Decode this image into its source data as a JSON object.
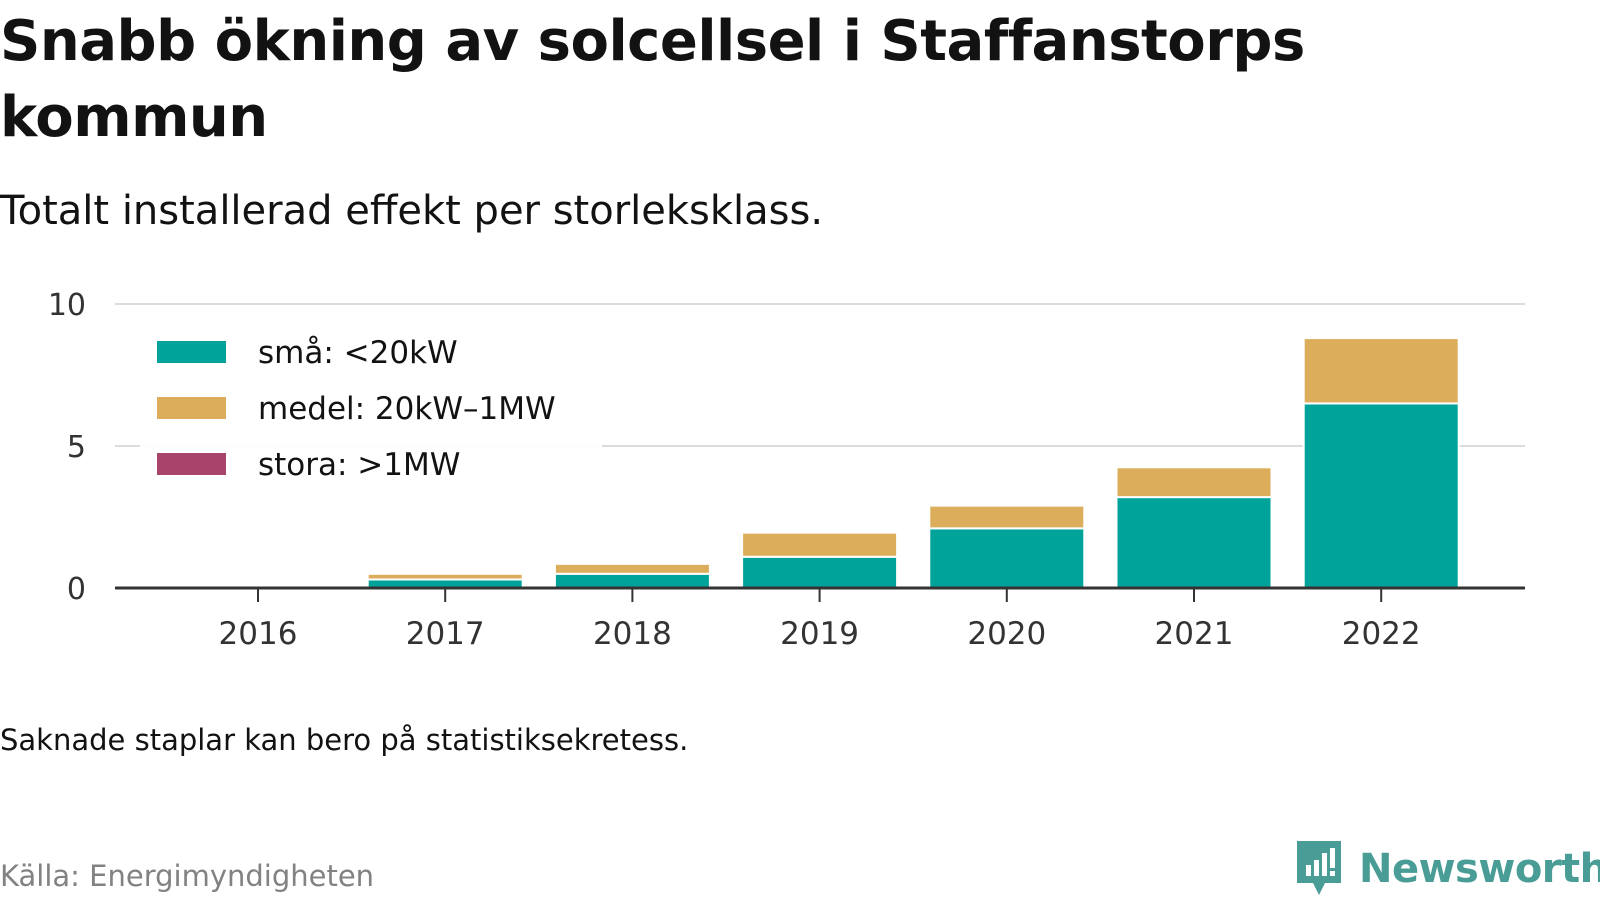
{
  "header": {
    "title": "Snabb ökning av solcellsel i Staffanstorps kommun",
    "subtitle": "Totalt installerad effekt per storleksklass."
  },
  "footer": {
    "note": "Saknade staplar kan bero på statistiksekretess.",
    "source": "Källa: Energimyndigheten",
    "brand": "Newsworthy",
    "brand_icon": "newsworthy-logo-icon",
    "brand_color": "#4a9d96"
  },
  "chart_data": {
    "type": "bar",
    "stacked": true,
    "categories": [
      "2016",
      "2017",
      "2018",
      "2019",
      "2020",
      "2021",
      "2022"
    ],
    "series": [
      {
        "name": "små: <20kW",
        "color": "#00a39a",
        "values": [
          0,
          0.3,
          0.5,
          1.1,
          2.1,
          3.2,
          6.5
        ]
      },
      {
        "name": "medel: 20kW–1MW",
        "color": "#dcae5b",
        "values": [
          0,
          0.2,
          0.35,
          0.85,
          0.8,
          1.05,
          2.3
        ]
      },
      {
        "name": "stora: >1MW",
        "color": "#a8436b",
        "values": [
          0,
          0,
          0,
          0,
          0,
          0,
          0
        ]
      }
    ],
    "ylim": [
      0,
      10
    ],
    "yticks": [
      0,
      5,
      10
    ],
    "grid": true,
    "legend": "top-left",
    "xlabel": "",
    "ylabel": ""
  }
}
